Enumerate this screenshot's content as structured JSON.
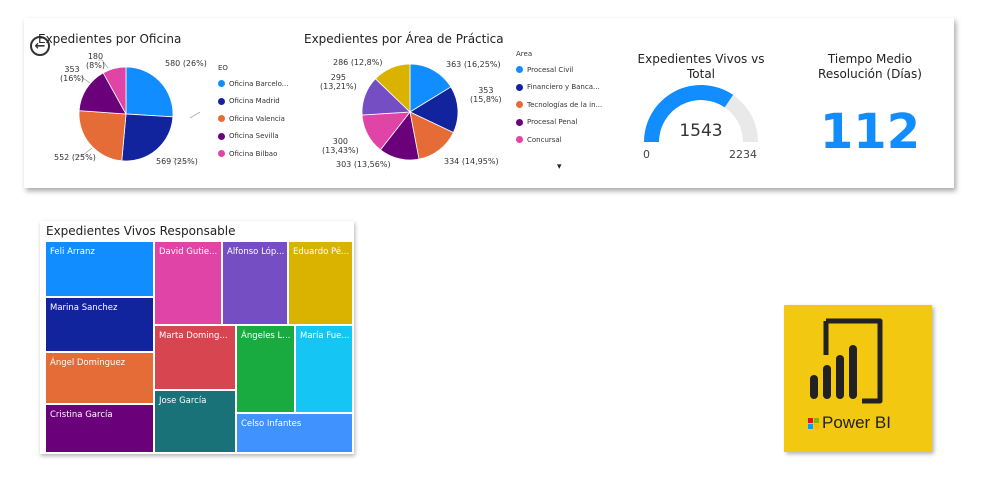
{
  "top_card": {
    "oficina_chart": {
      "title": "Expedientes por Oficina",
      "legend_title": "EO",
      "legend": [
        {
          "label": "Oficina Barcelo...",
          "color": "#118DFF"
        },
        {
          "label": "Oficina Madrid",
          "color": "#12239E"
        },
        {
          "label": "Oficina Valencia",
          "color": "#E66C37"
        },
        {
          "label": "Oficina Sevilla",
          "color": "#6B007B"
        },
        {
          "label": "Oficina Bilbao",
          "color": "#E044A7"
        }
      ],
      "labels": {
        "l0": "580 (26%)",
        "l1": "569 (25%)",
        "l2": "552 (25%)",
        "l3a": "353",
        "l3b": "(16%)",
        "l4a": "180",
        "l4b": "(8%)"
      }
    },
    "area_chart": {
      "title": "Expedientes por Área de Práctica",
      "legend_title": "Area",
      "legend": [
        {
          "label": "Procesal Civil",
          "color": "#118DFF"
        },
        {
          "label": "Financiero y Banca...",
          "color": "#12239E"
        },
        {
          "label": "Tecnologías de la in...",
          "color": "#E66C37"
        },
        {
          "label": "Procesal Penal",
          "color": "#6B007B"
        },
        {
          "label": "Concursal",
          "color": "#E044A7"
        }
      ],
      "more_icon": "▾",
      "labels": {
        "l0": "363 (16,25%)",
        "l1a": "353",
        "l1b": "(15,8%)",
        "l2": "334 (14,95%)",
        "l3": "303 (13,56%)",
        "l4a": "300",
        "l4b": "(13,43%)",
        "l5a": "295",
        "l5b": "(13,21%)",
        "l6": "286 (12,8%)"
      }
    },
    "gauge": {
      "title_line1": "Expedientes Vivos vs",
      "title_line2": "Total",
      "value": "1543",
      "min": "0",
      "max": "2234"
    },
    "kpi": {
      "title_line1": "Tiempo Medio",
      "title_line2": "Resolución (Días)",
      "value": "112",
      "color": "#118DFF"
    }
  },
  "treemap": {
    "title": "Expedientes Vivos Responsable",
    "cells": [
      {
        "label": "Feli Arranz",
        "color": "#118DFF"
      },
      {
        "label": "Marina Sanchez",
        "color": "#12239E"
      },
      {
        "label": "Ángel Dominguez",
        "color": "#E66C37"
      },
      {
        "label": "Cristina García",
        "color": "#6B007B"
      },
      {
        "label": "David Gutie...",
        "color": "#E044A7"
      },
      {
        "label": "Alfonso Lóp...",
        "color": "#744EC2"
      },
      {
        "label": "Eduardo Pé...",
        "color": "#D9B300"
      },
      {
        "label": "Marta Doming...",
        "color": "#D64550"
      },
      {
        "label": "Ángeles L...",
        "color": "#1AAB40"
      },
      {
        "label": "María Fue...",
        "color": "#15C6F4"
      },
      {
        "label": "Jose García",
        "color": "#197278"
      },
      {
        "label": "Celso Infantes",
        "color": "#4092FF"
      }
    ]
  },
  "chart_data": [
    {
      "type": "pie",
      "title": "Expedientes por Oficina",
      "legend_title": "EO",
      "categories": [
        "Oficina Barcelona",
        "Oficina Madrid",
        "Oficina Valencia",
        "Oficina Sevilla",
        "Oficina Bilbao"
      ],
      "values": [
        580,
        569,
        552,
        353,
        180
      ],
      "percents": [
        26,
        25,
        25,
        16,
        8
      ],
      "colors": [
        "#118DFF",
        "#12239E",
        "#E66C37",
        "#6B007B",
        "#E044A7"
      ],
      "legend_position": "right"
    },
    {
      "type": "pie",
      "title": "Expedientes por Área de Práctica",
      "legend_title": "Area",
      "categories": [
        "Procesal Civil",
        "Financiero y Bancario",
        "Tecnologías de la información",
        "Procesal Penal",
        "Concursal",
        "",
        ""
      ],
      "values": [
        363,
        353,
        334,
        303,
        300,
        295,
        286
      ],
      "percents": [
        16.25,
        15.8,
        14.95,
        13.56,
        13.43,
        13.21,
        12.8
      ],
      "colors": [
        "#118DFF",
        "#12239E",
        "#E66C37",
        "#6B007B",
        "#E044A7",
        "#744EC2",
        "#D9B300"
      ],
      "legend_position": "right"
    },
    {
      "type": "gauge",
      "title": "Expedientes Vivos vs Total",
      "value": 1543,
      "min": 0,
      "max": 2234
    }
  ]
}
